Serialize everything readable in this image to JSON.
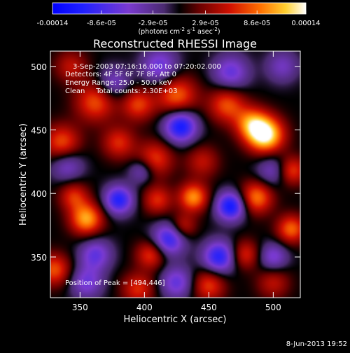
{
  "chart_data": {
    "type": "heatmap",
    "title": "Reconstructed RHESSI Image",
    "xlabel": "Heliocentric X (arcsec)",
    "ylabel": "Heliocentric Y (arcsec)",
    "xlim": [
      327,
      521
    ],
    "ylim": [
      318,
      512
    ],
    "x_ticks": [
      350,
      400,
      450,
      500
    ],
    "y_ticks": [
      350,
      400,
      450,
      500
    ],
    "colorbar": {
      "min": -0.00014,
      "max": 0.00014,
      "tick_labels": [
        "-0.00014",
        "-8.6e-05",
        "-2.9e-05",
        "2.9e-05",
        "8.6e-05",
        "0.00014"
      ],
      "tick_values": [
        -0.00014,
        -8.6e-05,
        -2.9e-05,
        2.9e-05,
        8.6e-05,
        0.00014
      ],
      "unit_label": "(photons cm",
      "unit_sup1": "-2",
      "unit_mid": " s",
      "unit_sup2": "-1",
      "unit_mid2": " asec",
      "unit_sup3": "-2",
      "unit_end": ")"
    },
    "annotations": {
      "time_range": "3-Sep-2003 07:16:16.000 to 07:20:02.000",
      "detectors": "Detectors: 4F 5F 6F 7F 8F, Att 0",
      "energy_range": "Energy Range: 25.0 - 50.0 keV",
      "clean": "Clean     Total counts: 2.30E+03",
      "peak": "Position of Peak = [494,446]"
    },
    "sources": [
      {
        "x": 494,
        "y": 446,
        "amp": 1.0,
        "s": 10
      },
      {
        "x": 483,
        "y": 455,
        "amp": 0.6,
        "s": 9
      },
      {
        "x": 464,
        "y": 470,
        "amp": 0.55,
        "s": 10
      },
      {
        "x": 425,
        "y": 477,
        "amp": 0.6,
        "s": 11
      },
      {
        "x": 395,
        "y": 470,
        "amp": 0.5,
        "s": 9
      },
      {
        "x": 362,
        "y": 472,
        "amp": 0.55,
        "s": 11
      },
      {
        "x": 336,
        "y": 440,
        "amp": 0.55,
        "s": 10
      },
      {
        "x": 380,
        "y": 440,
        "amp": 0.45,
        "s": 9
      },
      {
        "x": 408,
        "y": 427,
        "amp": 0.5,
        "s": 10
      },
      {
        "x": 445,
        "y": 425,
        "amp": 0.35,
        "s": 9
      },
      {
        "x": 410,
        "y": 395,
        "amp": 0.45,
        "s": 8
      },
      {
        "x": 355,
        "y": 380,
        "amp": 0.75,
        "s": 9
      },
      {
        "x": 345,
        "y": 398,
        "amp": 0.45,
        "s": 8
      },
      {
        "x": 438,
        "y": 397,
        "amp": 0.7,
        "s": 8
      },
      {
        "x": 487,
        "y": 397,
        "amp": 0.65,
        "s": 9
      },
      {
        "x": 514,
        "y": 418,
        "amp": 0.55,
        "s": 8
      },
      {
        "x": 514,
        "y": 372,
        "amp": 0.6,
        "s": 8
      },
      {
        "x": 430,
        "y": 374,
        "amp": 0.4,
        "s": 7
      },
      {
        "x": 405,
        "y": 352,
        "amp": 0.5,
        "s": 8
      },
      {
        "x": 478,
        "y": 352,
        "amp": 0.45,
        "s": 8
      },
      {
        "x": 330,
        "y": 340,
        "amp": 0.55,
        "s": 9
      },
      {
        "x": 395,
        "y": 325,
        "amp": 0.45,
        "s": 9
      },
      {
        "x": 450,
        "y": 328,
        "amp": 0.5,
        "s": 9
      },
      {
        "x": 500,
        "y": 330,
        "amp": 0.35,
        "s": 9
      },
      {
        "x": 343,
        "y": 500,
        "amp": 0.35,
        "s": 9
      },
      {
        "x": 428,
        "y": 453,
        "amp": -0.85,
        "s": 9
      },
      {
        "x": 412,
        "y": 500,
        "amp": -0.5,
        "s": 10
      },
      {
        "x": 467,
        "y": 495,
        "amp": -0.5,
        "s": 10
      },
      {
        "x": 376,
        "y": 487,
        "amp": -0.4,
        "s": 9
      },
      {
        "x": 380,
        "y": 395,
        "amp": -0.75,
        "s": 8
      },
      {
        "x": 467,
        "y": 390,
        "amp": -0.85,
        "s": 8
      },
      {
        "x": 419,
        "y": 364,
        "amp": -0.7,
        "s": 9
      },
      {
        "x": 458,
        "y": 350,
        "amp": -0.75,
        "s": 9
      },
      {
        "x": 500,
        "y": 418,
        "amp": -0.4,
        "s": 9
      },
      {
        "x": 340,
        "y": 422,
        "amp": -0.4,
        "s": 9
      },
      {
        "x": 362,
        "y": 352,
        "amp": -0.5,
        "s": 9
      },
      {
        "x": 355,
        "y": 330,
        "amp": -0.45,
        "s": 9
      },
      {
        "x": 500,
        "y": 350,
        "amp": -0.45,
        "s": 8
      },
      {
        "x": 425,
        "y": 330,
        "amp": -0.5,
        "s": 9
      },
      {
        "x": 507,
        "y": 500,
        "amp": -0.35,
        "s": 9
      },
      {
        "x": 398,
        "y": 418,
        "amp": -0.4,
        "s": 7
      }
    ]
  },
  "footer": {
    "timestamp": "8-Jun-2013 19:52"
  }
}
